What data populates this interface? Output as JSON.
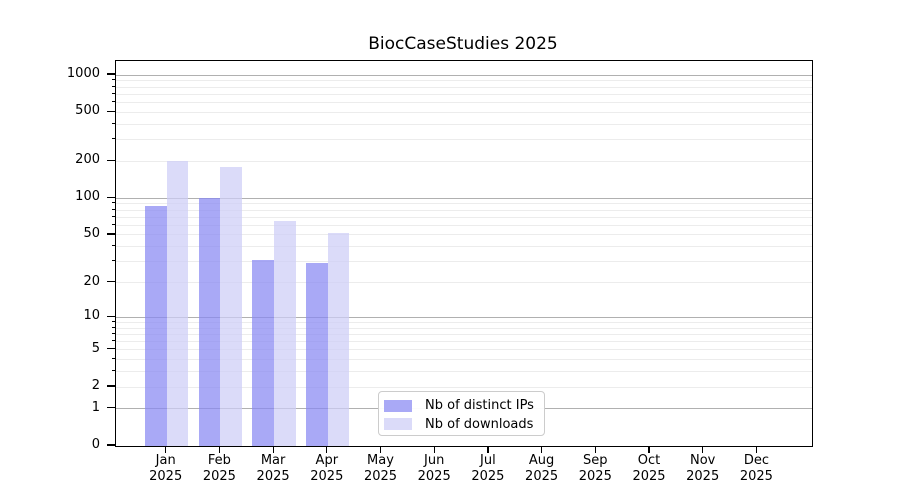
{
  "chart_data": {
    "type": "bar",
    "title": "BiocCaseStudies 2025",
    "x_categories": [
      "Jan",
      "Feb",
      "Mar",
      "Apr",
      "May",
      "Jun",
      "Jul",
      "Aug",
      "Sep",
      "Oct",
      "Nov",
      "Dec"
    ],
    "x_year_label": "2025",
    "series": [
      {
        "name": "Nb of distinct IPs",
        "color": "#a9a9f6",
        "values": [
          87,
          100,
          31,
          29,
          null,
          null,
          null,
          null,
          null,
          null,
          null,
          null
        ]
      },
      {
        "name": "Nb of downloads",
        "color": "#dbdbf9",
        "values": [
          200,
          180,
          65,
          52,
          null,
          null,
          null,
          null,
          null,
          null,
          null,
          null
        ]
      }
    ],
    "y_ticks": [
      0,
      1,
      2,
      5,
      10,
      20,
      50,
      100,
      200,
      500,
      1000
    ],
    "y_scale": "log1p",
    "ylim": [
      0,
      1300
    ],
    "xlabel": "",
    "ylabel": "",
    "grid": "horizontal; light minor lines at 2-9 per decade, darker lines at 1, 10, 100, 1000",
    "legend_position": "inside lower-center-left"
  }
}
